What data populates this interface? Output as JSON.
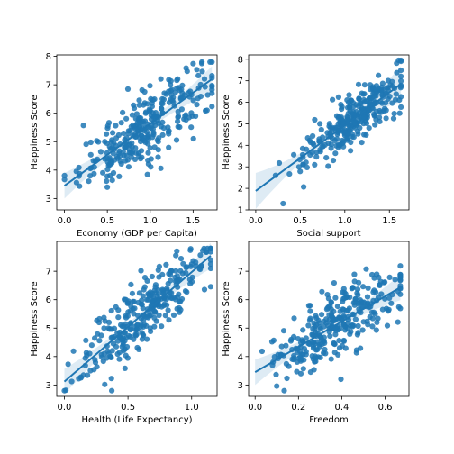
{
  "chart_data": [
    {
      "type": "scatter",
      "xlabel": "Economy (GDP per Capita)",
      "ylabel": "Happiness Score",
      "xlim": [
        -0.09,
        1.78
      ],
      "ylim": [
        2.6,
        8.05
      ],
      "xticks": [
        0.0,
        0.5,
        1.0,
        1.5
      ],
      "yticks": [
        3,
        4,
        5,
        6,
        7,
        8
      ],
      "xtick_labels": [
        "0.0",
        "0.5",
        "1.0",
        "1.5"
      ],
      "ytick_labels": [
        "3",
        "4",
        "5",
        "6",
        "7",
        "8"
      ],
      "regression": {
        "intercept": 3.45,
        "slope": 2.18,
        "x_range": [
          0.0,
          1.72
        ]
      },
      "x_range": [
        0.0,
        1.72
      ],
      "n_points": 310,
      "color": "#1f77b4"
    },
    {
      "type": "scatter",
      "xlabel": "Social support",
      "ylabel": "Happiness Score",
      "xlim": [
        -0.08,
        1.72
      ],
      "ylim": [
        1.0,
        8.2
      ],
      "xticks": [
        0.0,
        0.5,
        1.0,
        1.5
      ],
      "yticks": [
        1,
        2,
        3,
        4,
        5,
        6,
        7,
        8
      ],
      "xtick_labels": [
        "0.0",
        "0.5",
        "1.0",
        "1.5"
      ],
      "ytick_labels": [
        "1",
        "2",
        "3",
        "4",
        "5",
        "6",
        "7",
        "8"
      ],
      "regression": {
        "intercept": 1.88,
        "slope": 3.05,
        "x_range": [
          0.0,
          1.63
        ]
      },
      "x_range": [
        0.0,
        1.63
      ],
      "n_points": 310,
      "color": "#1f77b4"
    },
    {
      "type": "scatter",
      "xlabel": "Health (Life Expectancy)",
      "ylabel": "Happiness Score",
      "xlim": [
        -0.06,
        1.2
      ],
      "ylim": [
        2.6,
        8.05
      ],
      "xticks": [
        0.0,
        0.5,
        1.0
      ],
      "yticks": [
        3,
        4,
        5,
        6,
        7
      ],
      "xtick_labels": [
        "0.0",
        "0.5",
        "1.0"
      ],
      "ytick_labels": [
        "3",
        "4",
        "5",
        "6",
        "7"
      ],
      "regression": {
        "intercept": 3.12,
        "slope": 3.85,
        "x_range": [
          0.0,
          1.15
        ]
      },
      "x_range": [
        0.0,
        1.15
      ],
      "n_points": 310,
      "color": "#1f77b4"
    },
    {
      "type": "scatter",
      "xlabel": "Freedom",
      "ylabel": "Happiness Score",
      "xlim": [
        -0.03,
        0.71
      ],
      "ylim": [
        2.6,
        8.05
      ],
      "xticks": [
        0.0,
        0.2,
        0.4,
        0.6
      ],
      "yticks": [
        3,
        4,
        5,
        6,
        7
      ],
      "xtick_labels": [
        "0.0",
        "0.2",
        "0.4",
        "0.6"
      ],
      "ytick_labels": [
        "3",
        "4",
        "5",
        "6",
        "7"
      ],
      "regression": {
        "intercept": 3.45,
        "slope": 4.45,
        "x_range": [
          0.0,
          0.67
        ]
      },
      "x_range": [
        0.0,
        0.67
      ],
      "n_points": 310,
      "color": "#1f77b4"
    }
  ]
}
